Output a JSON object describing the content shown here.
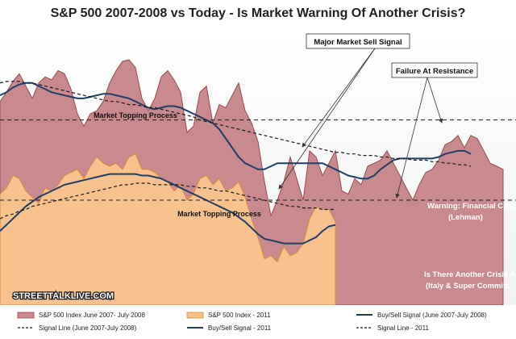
{
  "chart_data": {
    "type": "area",
    "title": "S&P 500 2007-2008 vs Today - Is Market Warning Of Another Crisis?",
    "grid": false,
    "series": [
      {
        "name": "S&P 500 Index June 2007- July 2008",
        "kind": "area",
        "color": "#c88a8e",
        "stroke": "#9a4a50",
        "values": [
          32,
          38,
          45,
          50,
          42,
          34,
          44,
          48,
          46,
          52,
          50,
          40,
          24,
          16,
          24,
          26,
          32,
          44,
          52,
          58,
          59,
          54,
          34,
          26,
          34,
          48,
          52,
          46,
          38,
          12,
          16,
          38,
          42,
          18,
          30,
          28,
          36,
          44,
          26,
          18,
          6,
          -20,
          -42,
          -32,
          -20,
          -4,
          -18,
          -32,
          0,
          -4,
          -16,
          -8,
          0,
          -26,
          -28,
          -18,
          -22,
          -10,
          -8,
          -6,
          0,
          -8,
          -16,
          -24,
          -32,
          -22,
          -14,
          -12,
          -6,
          4,
          6,
          10,
          2,
          10,
          8,
          0,
          -8,
          -10,
          -12
        ]
      },
      {
        "name": "S&P 500 Index - 2011",
        "kind": "area",
        "color": "#f7c28e",
        "stroke": "#d98a3a",
        "values": [
          -28,
          -24,
          -16,
          -18,
          -26,
          -30,
          -34,
          -24,
          -26,
          -22,
          -16,
          -14,
          -12,
          -18,
          -10,
          -4,
          -8,
          -10,
          -8,
          -12,
          -4,
          -2,
          -12,
          -12,
          -14,
          -18,
          -20,
          -26,
          -22,
          -32,
          -28,
          -18,
          -16,
          -22,
          -18,
          -26,
          -24,
          -20,
          -30,
          -44,
          -56,
          -70,
          -68,
          -72,
          -62,
          -68,
          -66,
          -60,
          -44,
          -36,
          -38,
          -38,
          -46
        ]
      },
      {
        "name": "Buy/Sell Signal (June 2007-July 2008)",
        "kind": "line",
        "color": "#1f3f66",
        "values": [
          36,
          38,
          41,
          43,
          44,
          44,
          42,
          40,
          38,
          37,
          36,
          35,
          34,
          34,
          35,
          36,
          37,
          37,
          36,
          35,
          34,
          32,
          30,
          28,
          27,
          28,
          29,
          29,
          28,
          26,
          24,
          22,
          20,
          18,
          14,
          8,
          2,
          -4,
          -8,
          -10,
          -12,
          -12,
          -10,
          -8,
          -8,
          -8,
          -8,
          -8,
          -8,
          -8,
          -8,
          -10,
          -12,
          -14,
          -16,
          -17,
          -18,
          -18,
          -16,
          -12,
          -9,
          -6,
          -5,
          -5,
          -5,
          -5,
          -5,
          -5,
          -4,
          -2,
          -1,
          0,
          0,
          -2
        ]
      },
      {
        "name": "Signal Line (June 2007-July 2008)",
        "kind": "line",
        "dashed": true,
        "color": "#1a1a1a",
        "values": [
          44,
          45,
          45,
          45,
          44,
          44,
          43,
          42,
          41,
          40,
          39,
          38,
          37,
          36,
          35,
          34,
          33,
          32,
          32,
          31,
          30,
          30,
          29,
          28,
          28,
          27,
          26,
          25,
          24,
          23,
          22,
          20,
          19,
          18,
          17,
          16,
          15,
          14,
          13,
          12,
          11,
          10,
          9,
          8,
          7,
          6,
          5,
          4,
          3,
          2,
          1,
          0,
          -1,
          -1,
          -2,
          -2,
          -3,
          -3,
          -3,
          -4,
          -4,
          -5,
          -5,
          -5,
          -6,
          -6,
          -6,
          -7,
          -7,
          -8,
          -8,
          -9,
          -9,
          -10
        ]
      },
      {
        "name": "Buy/Sell Signal - 2011",
        "kind": "line",
        "color": "#1f3f66",
        "values": [
          -52,
          -48,
          -44,
          -40,
          -36,
          -33,
          -30,
          -28,
          -26,
          -24,
          -22,
          -21,
          -20,
          -19,
          -18,
          -17,
          -16,
          -15,
          -15,
          -15,
          -15,
          -15,
          -16,
          -16,
          -17,
          -18,
          -20,
          -22,
          -24,
          -26,
          -28,
          -30,
          -32,
          -34,
          -36,
          -38,
          -40,
          -43,
          -46,
          -50,
          -54,
          -57,
          -58,
          -59,
          -60,
          -60,
          -60,
          -60,
          -58,
          -56,
          -52,
          -49,
          -48
        ]
      },
      {
        "name": "Signal Line - 2011",
        "kind": "line",
        "dashed": true,
        "color": "#1a1a1a",
        "values": [
          -44,
          -42,
          -41,
          -39,
          -38,
          -36,
          -35,
          -34,
          -33,
          -32,
          -31,
          -30,
          -29,
          -28,
          -27,
          -26,
          -25,
          -24,
          -23,
          -22,
          -22,
          -21,
          -21,
          -21,
          -22,
          -22,
          -22,
          -22,
          -22,
          -23,
          -23,
          -24,
          -24,
          -25,
          -26,
          -26,
          -27,
          -28,
          -29,
          -30,
          -31,
          -32,
          -33,
          -34,
          -35,
          -36,
          -36,
          -37,
          -37,
          -37,
          -38,
          -38,
          -38
        ]
      }
    ],
    "reference_lines": [
      {
        "value": 20,
        "label": "Market Topping Process"
      },
      {
        "value": -32,
        "label": "Market Topping Process"
      }
    ],
    "annotations": [
      {
        "label": "Major Market Sell Signal"
      },
      {
        "label": "Failure At Resistance"
      },
      {
        "label": "Warning: Financial Crisis A",
        "sublabel": "(Lehman)"
      },
      {
        "label": "Is There Another Crisis Ah",
        "sublabel": "(Italy & Super Committ"
      }
    ],
    "watermark": "STREETTALKLIVE.COM",
    "legend_position": "bottom"
  }
}
